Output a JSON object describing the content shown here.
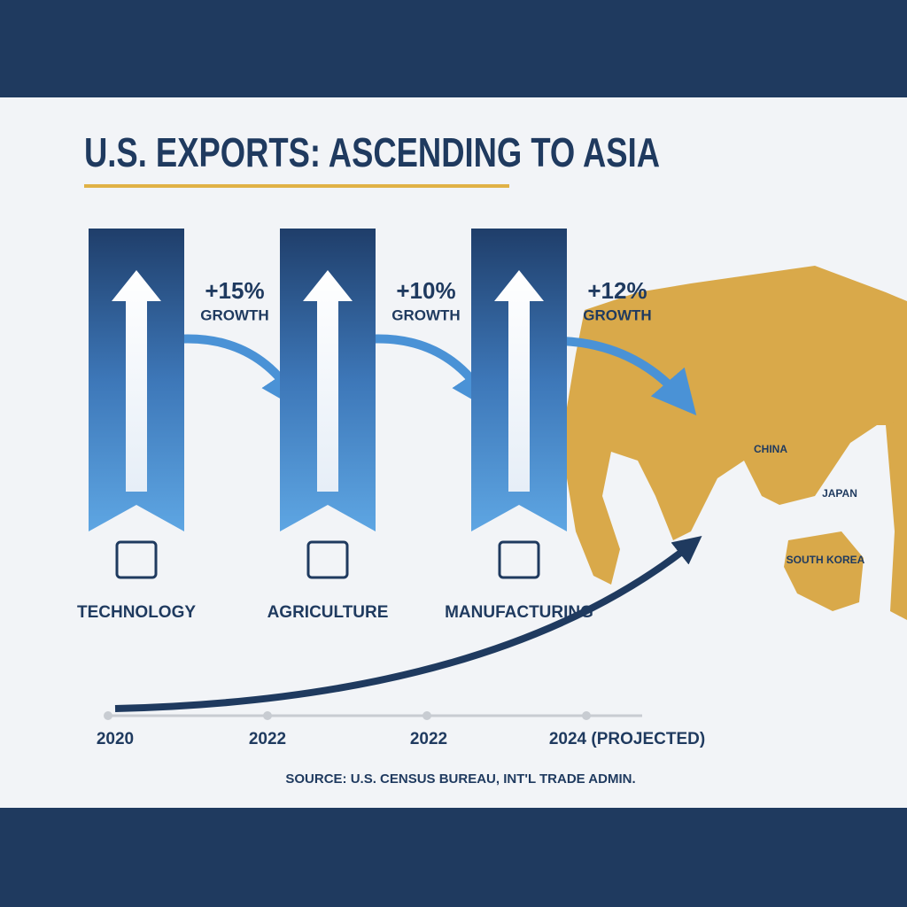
{
  "header": {
    "title": "U.S. EXPORTS: ASCENDING TO ASIA"
  },
  "panels": [
    {
      "growth": "+15%",
      "growth_label": "GROWTH",
      "category": "TECHNOLOGY"
    },
    {
      "growth": "+10%",
      "growth_label": "GROWTH",
      "category": "AGRICULTURE"
    },
    {
      "growth": "+12%",
      "growth_label": "GROWTH",
      "category": "MANUFACTURING"
    }
  ],
  "map": {
    "labels": [
      "CHINA",
      "JAPAN",
      "SOUTH KOREA"
    ]
  },
  "timeline": {
    "labels": [
      "2020",
      "2022",
      "2022",
      "2024 (PROJECTED)"
    ]
  },
  "source": "SOURCE: U.S. CENSUS BUREAU, INT'L TRADE ADMIN."
}
